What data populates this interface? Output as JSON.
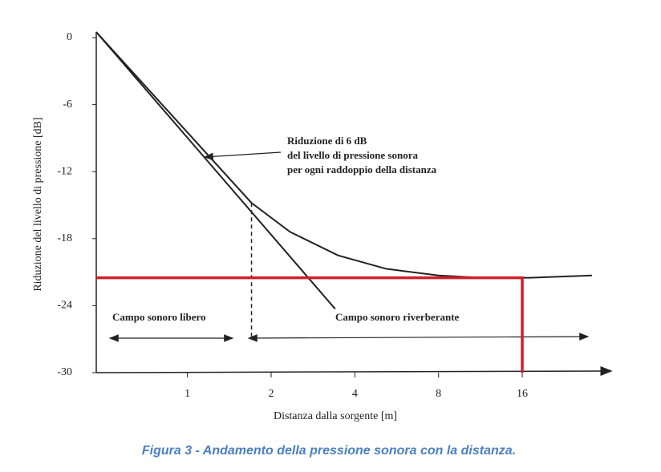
{
  "chart_data": {
    "type": "line",
    "ylabel": "Riduzione del livello di pressione [dB]",
    "xlabel": "Distanza dalla sorgente [m]",
    "caption": "Figura 3 - Andamento della pressione sonora con la distanza.",
    "annotations": [
      "Riduzione di 6 dB",
      "del livello di pressione sonora",
      "per ogni raddoppio della distanza",
      "Campo sonoro libero",
      "Campo sonoro riverberante"
    ],
    "xscale": "log2",
    "xlim": [
      0.47,
      33
    ],
    "ylim": [
      -30,
      0
    ],
    "xticks": [
      1,
      2,
      4,
      8,
      16
    ],
    "yticks": [
      0,
      -6,
      -12,
      -18,
      -24,
      -30
    ],
    "series": [
      {
        "color": "#222222",
        "style": "solid",
        "x": [
          0.47,
          3.4
        ],
        "values": [
          0.5,
          -24.3
        ]
      },
      {
        "color": "#222222",
        "style": "solid",
        "x": [
          0.47,
          1.7,
          2.34,
          3.48,
          5.18,
          8,
          11.4,
          17,
          28.5
        ],
        "values": [
          0.5,
          -14.8,
          -17.4,
          -19.5,
          -20.7,
          -21.3,
          -21.5,
          -21.5,
          -21.3
        ]
      },
      {
        "color": "#222222",
        "style": "dashed",
        "x": [
          1.7,
          1.7
        ],
        "values": [
          -14.8,
          -27
        ]
      },
      {
        "color": "#d0202a",
        "style": "thick",
        "x": [
          0.47,
          16,
          16
        ],
        "values": [
          -21.5,
          -21.5,
          -30
        ]
      }
    ]
  }
}
